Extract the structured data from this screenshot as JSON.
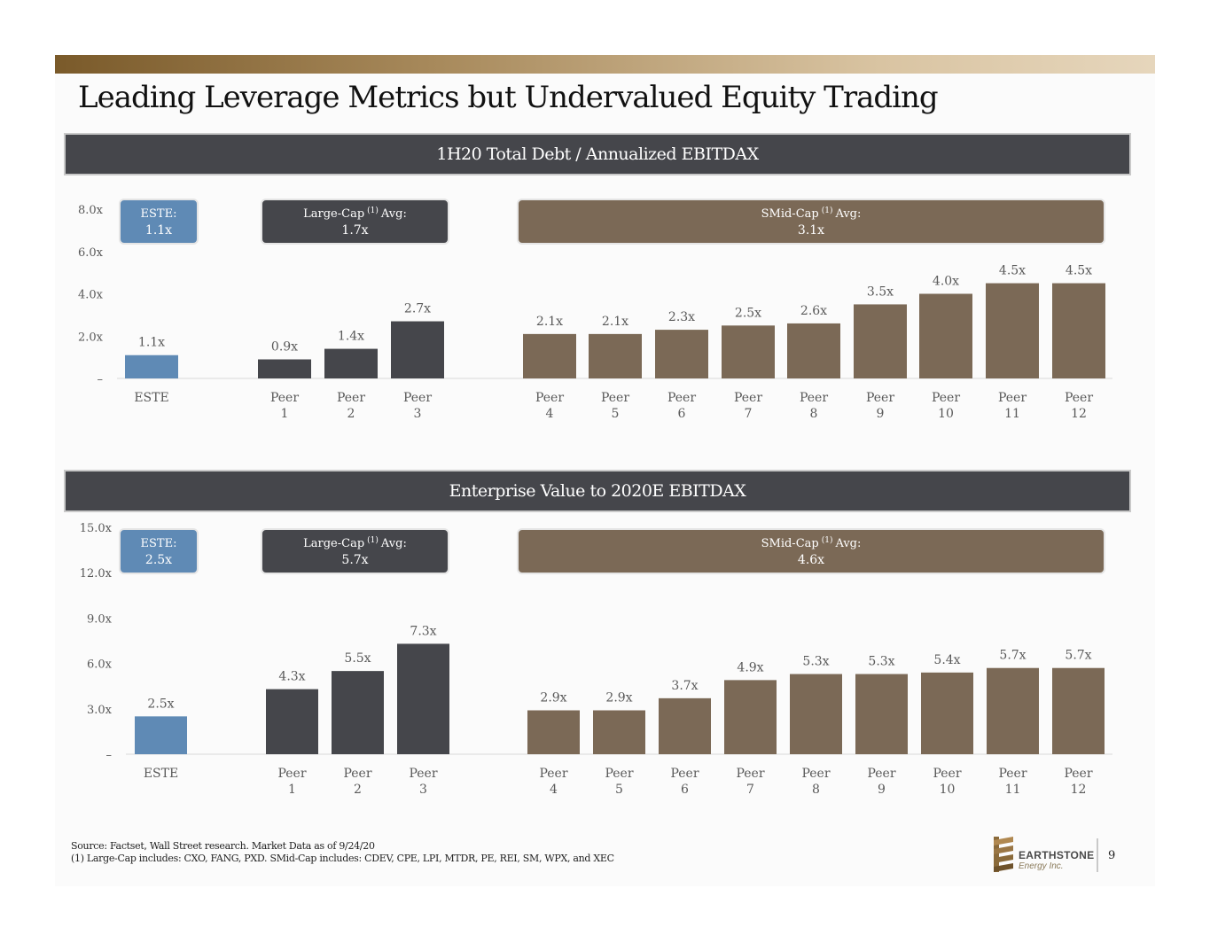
{
  "slide": {
    "title": "Leading Leverage Metrics but Undervalued Equity Trading",
    "page_number": "9"
  },
  "colors": {
    "este": "#5f8ab5",
    "large_cap": "#45464b",
    "smid_cap": "#7b6956",
    "header_bg": "#45464b"
  },
  "footnotes": {
    "source": "Source: Factset, Wall Street research.  Market Data as of 9/24/20",
    "note1": "(1)  Large-Cap includes: CXO, FANG, PXD.  SMid-Cap includes: CDEV, CPE, LPI, MTDR, PE, REI, SM, WPX, and XEC"
  },
  "logo": {
    "name": "EARTHSTONE",
    "sub": "Energy Inc.",
    "icon": "earthstone-logo-icon"
  },
  "chart_data": [
    {
      "type": "bar",
      "title": "1H20 Total Debt / Annualized EBITDAX",
      "categories": [
        [
          "ESTE"
        ],
        [
          "Peer",
          "1"
        ],
        [
          "Peer",
          "2"
        ],
        [
          "Peer",
          "3"
        ],
        [
          "Peer",
          "4"
        ],
        [
          "Peer",
          "5"
        ],
        [
          "Peer",
          "6"
        ],
        [
          "Peer",
          "7"
        ],
        [
          "Peer",
          "8"
        ],
        [
          "Peer",
          "9"
        ],
        [
          "Peer",
          "10"
        ],
        [
          "Peer",
          "11"
        ],
        [
          "Peer",
          "12"
        ]
      ],
      "groups": [
        "este",
        "large_cap",
        "large_cap",
        "large_cap",
        "smid_cap",
        "smid_cap",
        "smid_cap",
        "smid_cap",
        "smid_cap",
        "smid_cap",
        "smid_cap",
        "smid_cap",
        "smid_cap"
      ],
      "values": [
        1.1,
        0.9,
        1.4,
        2.7,
        2.1,
        2.1,
        2.3,
        2.5,
        2.6,
        3.5,
        4.0,
        4.5,
        4.5
      ],
      "labels": [
        "1.1x",
        "0.9x",
        "1.4x",
        "2.7x",
        "2.1x",
        "2.1x",
        "2.3x",
        "2.5x",
        "2.6x",
        "3.5x",
        "4.0x",
        "4.5x",
        "4.5x"
      ],
      "yticks": [
        "–",
        "2.0x",
        "4.0x",
        "6.0x",
        "8.0x"
      ],
      "ylim": [
        0,
        8
      ],
      "averages": [
        {
          "group": "este",
          "label": "ESTE:",
          "value": "1.1x"
        },
        {
          "group": "large_cap",
          "label": "Large-Cap",
          "sup": "(1)",
          "suffix": "Avg:",
          "value": "1.7x"
        },
        {
          "group": "smid_cap",
          "label": "SMid-Cap",
          "sup": "(1)",
          "suffix": "Avg:",
          "value": "3.1x"
        }
      ]
    },
    {
      "type": "bar",
      "title": "Enterprise Value to 2020E EBITDAX",
      "categories": [
        [
          "ESTE"
        ],
        [
          "Peer",
          "1"
        ],
        [
          "Peer",
          "2"
        ],
        [
          "Peer",
          "3"
        ],
        [
          "Peer",
          "4"
        ],
        [
          "Peer",
          "5"
        ],
        [
          "Peer",
          "6"
        ],
        [
          "Peer",
          "7"
        ],
        [
          "Peer",
          "8"
        ],
        [
          "Peer",
          "9"
        ],
        [
          "Peer",
          "10"
        ],
        [
          "Peer",
          "11"
        ],
        [
          "Peer",
          "12"
        ]
      ],
      "groups": [
        "este",
        "large_cap",
        "large_cap",
        "large_cap",
        "smid_cap",
        "smid_cap",
        "smid_cap",
        "smid_cap",
        "smid_cap",
        "smid_cap",
        "smid_cap",
        "smid_cap",
        "smid_cap"
      ],
      "values": [
        2.5,
        4.3,
        5.5,
        7.3,
        2.9,
        2.9,
        3.7,
        4.9,
        5.3,
        5.3,
        5.4,
        5.7,
        5.7
      ],
      "labels": [
        "2.5x",
        "4.3x",
        "5.5x",
        "7.3x",
        "2.9x",
        "2.9x",
        "3.7x",
        "4.9x",
        "5.3x",
        "5.3x",
        "5.4x",
        "5.7x",
        "5.7x"
      ],
      "yticks": [
        "–",
        "3.0x",
        "6.0x",
        "9.0x",
        "12.0x",
        "15.0x"
      ],
      "ylim": [
        0,
        15
      ],
      "averages": [
        {
          "group": "este",
          "label": "ESTE:",
          "value": "2.5x"
        },
        {
          "group": "large_cap",
          "label": "Large-Cap",
          "sup": "(1)",
          "suffix": "Avg:",
          "value": "5.7x"
        },
        {
          "group": "smid_cap",
          "label": "SMid-Cap",
          "sup": "(1)",
          "suffix": "Avg:",
          "value": "4.6x"
        }
      ]
    }
  ]
}
